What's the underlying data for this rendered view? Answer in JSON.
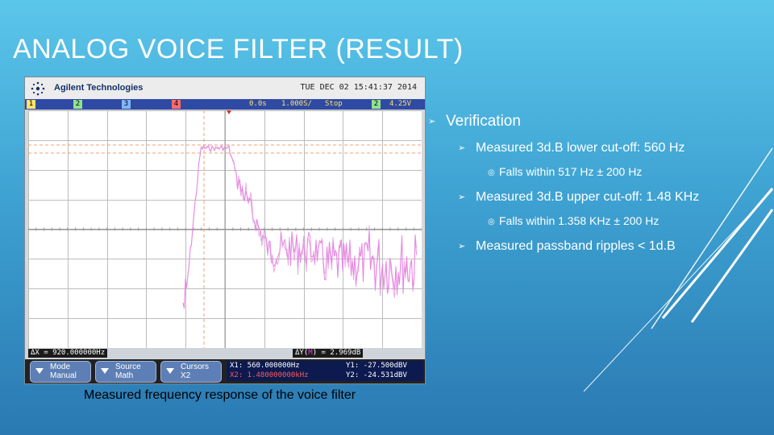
{
  "slide": {
    "title": "ANALOG VOICE FILTER (RESULT)",
    "caption": "Measured frequency response of the voice filter"
  },
  "scope": {
    "brand": "Agilent Technologies",
    "timestamp": "TUE DEC 02 15:41:37 2014",
    "channels": [
      "1",
      "2",
      "3",
      "4"
    ],
    "status": {
      "time_ref": "0.0s",
      "sample_rate": "1.000S/",
      "mode": "Stop",
      "trigger_channel": "2",
      "trigger_level": "4.25V"
    },
    "measurements": {
      "delta_x": "ΔX = 920.000000Hz",
      "delta_y_prefix": "ΔY(",
      "delta_y_channel": "M",
      "delta_y_suffix": ") = 2.969dB"
    },
    "softkeys": [
      {
        "line1": "Mode",
        "line2": "Manual"
      },
      {
        "line1": "Source",
        "line2": "Math"
      },
      {
        "line1": "Cursors",
        "line2": "X2"
      }
    ],
    "cursors": {
      "x1": "X1: 560.000000Hz",
      "x2": "X2: 1.480000000kHz",
      "y1": "Y1: -27.500dBV",
      "y2": "Y2: -24.531dBV"
    },
    "colors": {
      "trace": "#e58ae0",
      "cursor": "#f0a070",
      "status_bar": "#2f4aa3"
    }
  },
  "bullets": {
    "heading": "Verification",
    "items": [
      {
        "text": "Measured 3d.B lower cut-off: 560 Hz",
        "sub": "Falls within 517 Hz ± 200 Hz"
      },
      {
        "text": "Measured 3d.B upper cut-off: 1.48 KHz",
        "sub": "Falls within 1.358 KHz ± 200 Hz"
      },
      {
        "text": "Measured passband ripples < 1d.B",
        "sub": ""
      }
    ]
  },
  "icons": {
    "bullet_lvl1": "arrow-bullet-icon",
    "bullet_lvl3": "target-bullet-icon",
    "logo": "agilent-spark-icon"
  }
}
